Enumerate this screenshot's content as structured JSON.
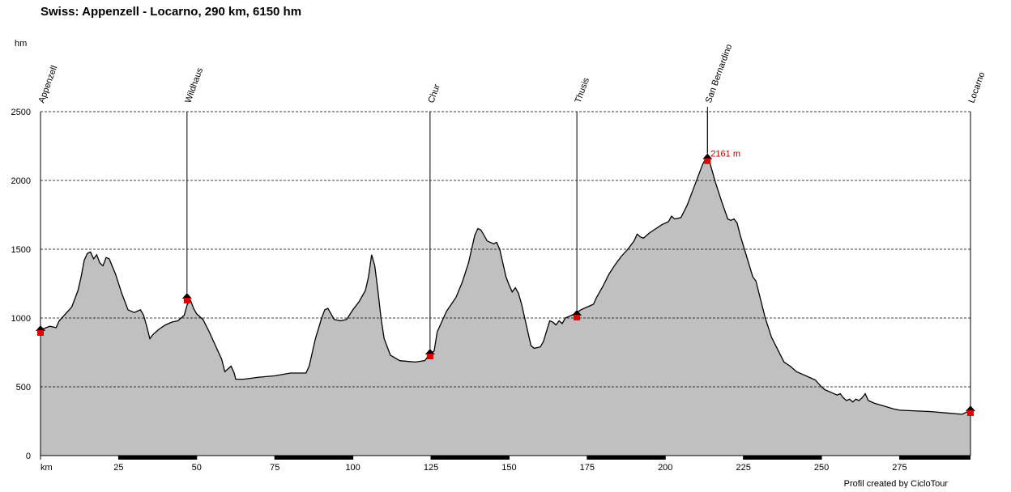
{
  "chart_data": {
    "type": "area",
    "title": "Swiss: Appenzell - Locarno, 290 km, 6150 hm",
    "y_label": "hm",
    "footer": "Profil created by CicloTour",
    "color": "#c0c0c0",
    "grid": true,
    "xlim": [
      0,
      297.7
    ],
    "ylim": [
      0,
      2500
    ],
    "xticks": [
      {
        "value": 0,
        "label": "km"
      },
      25,
      50,
      75,
      100,
      125,
      150,
      175,
      200,
      225,
      250,
      275
    ],
    "yticks": [
      0,
      500,
      1000,
      1500,
      2000,
      2500
    ],
    "x": [
      0,
      3,
      5,
      6,
      8,
      10,
      12,
      13,
      14,
      15,
      16,
      17,
      18,
      19,
      20,
      21,
      22,
      24,
      26,
      28,
      30,
      31,
      32,
      33,
      34,
      35,
      36,
      37,
      38,
      40,
      42,
      44,
      46,
      47,
      48,
      49,
      50,
      52,
      54,
      56,
      58,
      59,
      60,
      61,
      62,
      62.5,
      65,
      70,
      75,
      80,
      85,
      86,
      88,
      90,
      91,
      92,
      93,
      94,
      96,
      98,
      100,
      102,
      104,
      105,
      106,
      107,
      108,
      109,
      110,
      112,
      115,
      120,
      123,
      124.7,
      126,
      127,
      128,
      130,
      133,
      135,
      137,
      139,
      140,
      141,
      143,
      145,
      146,
      147,
      148,
      149,
      150,
      151,
      152,
      153,
      154,
      155,
      156,
      157,
      158,
      160,
      161,
      163,
      164,
      165,
      166,
      167,
      168,
      170,
      171.7,
      173,
      175,
      177,
      178,
      180,
      182,
      184,
      186,
      188,
      190,
      191,
      192,
      193,
      195,
      197,
      199,
      201,
      202,
      203,
      205,
      207,
      209,
      211,
      212,
      213.5,
      214,
      216,
      218,
      220,
      221,
      222,
      223,
      224,
      226,
      228,
      229,
      230,
      232,
      234,
      236,
      238,
      240,
      242,
      244,
      246,
      248,
      250,
      251,
      253,
      255,
      256,
      257,
      258,
      259,
      260,
      261,
      262,
      263,
      264,
      265,
      267,
      270,
      273,
      275,
      280,
      285,
      290,
      295,
      297.7
    ],
    "values": [
      914,
      940,
      930,
      980,
      1030,
      1080,
      1200,
      1300,
      1420,
      1470,
      1480,
      1430,
      1460,
      1400,
      1380,
      1440,
      1430,
      1320,
      1180,
      1060,
      1040,
      1050,
      1060,
      1020,
      940,
      850,
      880,
      900,
      920,
      950,
      970,
      980,
      1020,
      1100,
      1130,
      1070,
      1030,
      990,
      900,
      800,
      700,
      610,
      630,
      650,
      600,
      555,
      555,
      570,
      580,
      600,
      600,
      650,
      850,
      1000,
      1060,
      1070,
      1030,
      990,
      980,
      990,
      1060,
      1120,
      1200,
      1300,
      1460,
      1380,
      1200,
      1000,
      850,
      730,
      690,
      680,
      690,
      740,
      760,
      900,
      950,
      1050,
      1150,
      1260,
      1400,
      1600,
      1650,
      1640,
      1560,
      1540,
      1550,
      1500,
      1400,
      1300,
      1240,
      1190,
      1220,
      1180,
      1100,
      1000,
      900,
      800,
      780,
      790,
      830,
      980,
      970,
      950,
      980,
      960,
      1000,
      1020,
      1040,
      1060,
      1080,
      1100,
      1150,
      1230,
      1320,
      1390,
      1450,
      1500,
      1560,
      1610,
      1590,
      1580,
      1620,
      1650,
      1680,
      1700,
      1740,
      1720,
      1730,
      1820,
      1940,
      2060,
      2120,
      2180,
      2150,
      1990,
      1850,
      1720,
      1710,
      1720,
      1690,
      1600,
      1450,
      1300,
      1270,
      1180,
      1000,
      860,
      770,
      680,
      650,
      610,
      590,
      570,
      550,
      500,
      480,
      460,
      440,
      450,
      420,
      400,
      410,
      390,
      410,
      400,
      420,
      450,
      400,
      380,
      360,
      340,
      330,
      325,
      320,
      310,
      300,
      329
    ],
    "places": {
      "names": [
        "Appenzell",
        "Wildhaus",
        "Chur",
        "Thusis",
        "San Bernardino",
        "Locarno"
      ],
      "x": [
        0,
        46.9,
        124.7,
        171.7,
        213.5,
        297.7
      ],
      "values": [
        912,
        1147,
        741,
        1024,
        2161,
        329
      ],
      "value_labels": [
        null,
        null,
        null,
        null,
        "2161 m",
        null
      ]
    }
  }
}
